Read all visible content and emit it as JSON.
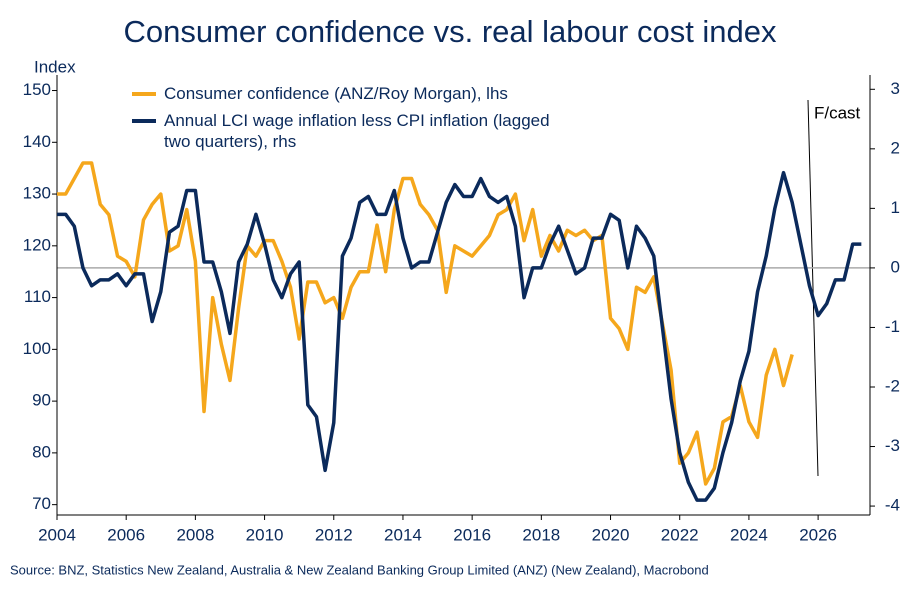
{
  "chart_data": {
    "type": "line",
    "title": "Consumer confidence vs. real labour cost index",
    "y_label": "Index",
    "source": "Source: BNZ, Statistics New Zealand, Australia & New Zealand Banking Group Limited (ANZ) (New Zealand), Macrobond",
    "annotation": "F/cast",
    "xlim": [
      2004,
      2027.5
    ],
    "xticks": [
      2004,
      2006,
      2008,
      2010,
      2012,
      2014,
      2016,
      2018,
      2020,
      2022,
      2024,
      2026
    ],
    "ylim": [
      68,
      153
    ],
    "yticks": [
      70,
      80,
      90,
      100,
      110,
      120,
      130,
      140,
      150
    ],
    "y2lim": [
      -4.15,
      3.24
    ],
    "y2ticks": [
      -4,
      -3,
      -2,
      -1,
      0,
      1,
      2,
      3
    ],
    "y2_refline": 0,
    "x": [
      2004,
      2004.25,
      2004.5,
      2004.75,
      2005,
      2005.25,
      2005.5,
      2005.75,
      2006,
      2006.25,
      2006.5,
      2006.75,
      2007,
      2007.25,
      2007.5,
      2007.75,
      2008,
      2008.25,
      2008.5,
      2008.75,
      2009,
      2009.25,
      2009.5,
      2009.75,
      2010,
      2010.25,
      2010.5,
      2010.75,
      2011,
      2011.25,
      2011.5,
      2011.75,
      2012,
      2012.25,
      2012.5,
      2012.75,
      2013,
      2013.25,
      2013.5,
      2013.75,
      2014,
      2014.25,
      2014.5,
      2014.75,
      2015,
      2015.25,
      2015.5,
      2015.75,
      2016,
      2016.25,
      2016.5,
      2016.75,
      2017,
      2017.25,
      2017.5,
      2017.75,
      2018,
      2018.25,
      2018.5,
      2018.75,
      2019,
      2019.25,
      2019.5,
      2019.75,
      2020,
      2020.25,
      2020.5,
      2020.75,
      2021,
      2021.25,
      2021.5,
      2021.75,
      2022,
      2022.25,
      2022.5,
      2022.75,
      2023,
      2023.25,
      2023.5,
      2023.75,
      2024,
      2024.25,
      2024.5,
      2024.75,
      2025,
      2025.25,
      2025.5,
      2025.75,
      2026,
      2026.25,
      2026.5,
      2026.75,
      2027,
      2027.25
    ],
    "series": [
      {
        "name": "Consumer confidence (ANZ/Roy Morgan), lhs",
        "color": "#f5a71c",
        "values": [
          130,
          130,
          133,
          136,
          136,
          128,
          126,
          118,
          117,
          114,
          125,
          128,
          130,
          119,
          120,
          127,
          117,
          88,
          110,
          101,
          94,
          108,
          120,
          118,
          121,
          121,
          117,
          112,
          102,
          113,
          113,
          109,
          110,
          106,
          112,
          115,
          115,
          124,
          115,
          127,
          133,
          133,
          128,
          126,
          123,
          111,
          120,
          119,
          118,
          120,
          122,
          126,
          127,
          130,
          121,
          127,
          118,
          122,
          119,
          123,
          122,
          123,
          121,
          122,
          106,
          104,
          100,
          112,
          111,
          114,
          105,
          96,
          78,
          80,
          84,
          74,
          77,
          86,
          87,
          93,
          86,
          83,
          95,
          100,
          93,
          99,
          null,
          null,
          null,
          null,
          null,
          null,
          null,
          null
        ]
      },
      {
        "name": "Annual LCI wage inflation less CPI inflation (lagged two quarters), rhs",
        "color": "#0b2a5b",
        "axis": "y2",
        "values": [
          0.9,
          0.9,
          0.7,
          0,
          -0.3,
          -0.2,
          -0.2,
          -0.1,
          -0.3,
          -0.1,
          -0.1,
          -0.9,
          -0.4,
          0.6,
          0.7,
          1.3,
          1.3,
          0.1,
          0.1,
          -0.4,
          -1.1,
          0.1,
          0.4,
          0.9,
          0.4,
          -0.2,
          -0.5,
          -0.1,
          0.1,
          -2.3,
          -2.5,
          -3.4,
          -2.6,
          0.2,
          0.5,
          1.1,
          1.2,
          0.9,
          0.9,
          1.3,
          0.5,
          0,
          0.1,
          0.1,
          0.6,
          1.1,
          1.4,
          1.2,
          1.2,
          1.5,
          1.2,
          1.1,
          1.2,
          0.7,
          -0.5,
          0,
          0,
          0.4,
          0.7,
          0.3,
          -0.1,
          0,
          0.5,
          0.5,
          0.9,
          0.8,
          0,
          0.7,
          0.5,
          0.2,
          -1,
          -2.2,
          -3.1,
          -3.6,
          -3.9,
          -3.9,
          -3.7,
          -3.1,
          -2.6,
          -1.9,
          -1.4,
          -0.4,
          0.2,
          1,
          1.6,
          1.1,
          0.4,
          -0.3,
          -0.8,
          -0.6,
          -0.2,
          -0.2,
          0.4,
          0.4
        ]
      }
    ]
  }
}
